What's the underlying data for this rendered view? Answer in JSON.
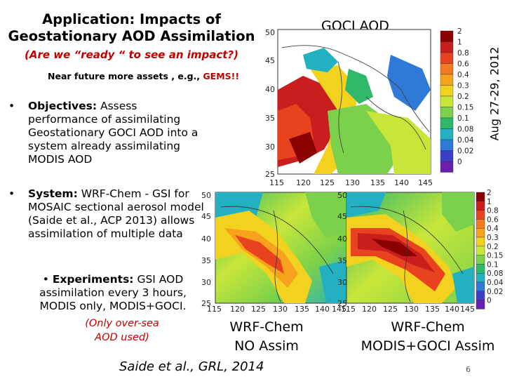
{
  "slide": {
    "title": "Application: Impacts of Geostationary AOD Assimilation",
    "title_line1": "Application: Impacts of",
    "title_line2": "Geostationary AOD Assimilation",
    "subtitle": "(Are we “ready “ to see an impact?)",
    "near_future_prefix": "Near future more assets , e.g., ",
    "near_future_gems": "GEMS!!",
    "bullets": [
      {
        "label": "Objectives:",
        "text": "Assess performance of assimilating Geostationary GOCI AOD into a system already assimilating MODIS AOD"
      },
      {
        "label": "System:",
        "text": "WRF-Chem - GSI for MOSAIC sectional aerosol model (Saide et al., ACP 2013) allows assimilation of multiple data"
      },
      {
        "label": "Experiments:",
        "text": "GSI AOD assimilation every 3 hours, MODIS only, MODIS+GOCI."
      }
    ],
    "bullet_symbol": "•",
    "note_line1": "(Only over-sea",
    "note_line2": "AOD used)",
    "citation": "Saide et al., GRL, 2014",
    "page_number": "6"
  },
  "maps": {
    "goci": {
      "title": "GOCI AOD",
      "date": "Aug 27-29, 2012",
      "lat_ticks": [
        "50",
        "45",
        "40",
        "35",
        "30",
        "25"
      ],
      "lon_ticks": [
        "115",
        "120",
        "125",
        "130",
        "135",
        "140",
        "145"
      ]
    },
    "no_assim": {
      "caption_line1": "WRF-Chem",
      "caption_line2": "NO Assim",
      "lat_ticks": [
        "50",
        "45",
        "40",
        "35",
        "30",
        "25"
      ],
      "lon_ticks": [
        "115",
        "120",
        "125",
        "130",
        "135",
        "140",
        "145"
      ]
    },
    "modis_goci": {
      "caption_line1": "WRF-Chem",
      "caption_line2": "MODIS+GOCI Assim",
      "lat_ticks": [
        "50",
        "45",
        "40",
        "35",
        "30",
        "25"
      ],
      "lon_ticks": [
        "115",
        "120",
        "125",
        "130",
        "135",
        "140",
        "145"
      ]
    }
  },
  "colorbar": {
    "labels": [
      "2",
      "1",
      "0.8",
      "0.6",
      "0.4",
      "0.3",
      "0.2",
      "0.15",
      "0.1",
      "0.08",
      "0.04",
      "0.02",
      "0"
    ],
    "colors": [
      "#8b0000",
      "#c81e1e",
      "#e8431e",
      "#f37a1f",
      "#f6a21d",
      "#f2d11f",
      "#c8e63a",
      "#7bd14b",
      "#2fb86a",
      "#23b0c0",
      "#2f7ad8",
      "#3b3fc8",
      "#6a1fb0"
    ]
  }
}
